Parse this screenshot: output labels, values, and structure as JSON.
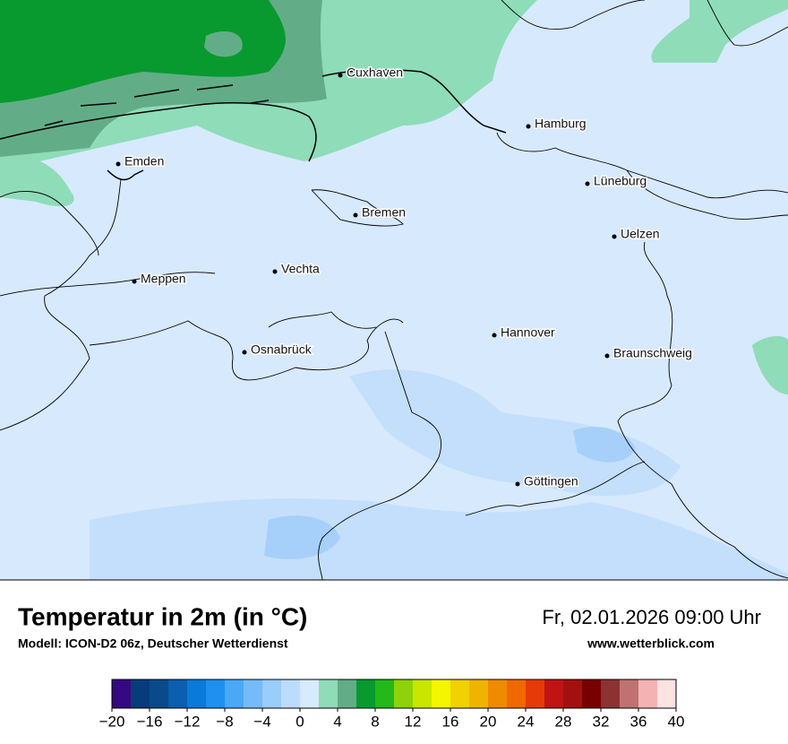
{
  "map": {
    "cities": [
      "Cuxhaven",
      "Hamburg",
      "Emden",
      "Lüneburg",
      "Bremen",
      "Uelzen",
      "Vechta",
      "Meppen",
      "Hannover",
      "Osnabrück",
      "Braunschweig",
      "Göttingen"
    ]
  },
  "footer": {
    "title": "Temperatur in 2m (in °C)",
    "subtitle": "Modell: ICON-D2 06z, Deutscher Wetterdienst",
    "date": "Fr, 02.01.2026 09:00 Uhr",
    "website": "www.wetterblick.com"
  },
  "colorbar": {
    "range": [
      -20,
      40
    ],
    "ticks": [
      {
        "value": -20,
        "label": "−20"
      },
      {
        "value": -16,
        "label": "−16"
      },
      {
        "value": -12,
        "label": "−12"
      },
      {
        "value": -8,
        "label": "−8"
      },
      {
        "value": -4,
        "label": "−4"
      },
      0,
      4,
      8,
      12,
      16,
      20,
      24,
      28,
      32,
      36,
      40
    ],
    "colors": [
      "#35097f",
      "#063c7c",
      "#0a4a8a",
      "#0a5fae",
      "#0a7ad8",
      "#1f90ef",
      "#4aa8f5",
      "#74bcf8",
      "#99cdfa",
      "#bcdcfb",
      "#d8eafd",
      "#8fdcb8",
      "#62ad88",
      "#089a2e",
      "#24b819",
      "#8ed20a",
      "#c8e600",
      "#f4f500",
      "#f0d200",
      "#f0b400",
      "#f08a00",
      "#f06800",
      "#e63a08",
      "#c01414",
      "#a31010",
      "#780000",
      "#8c3232",
      "#c07272",
      "#f4b2b2",
      "#fde2e2"
    ]
  }
}
